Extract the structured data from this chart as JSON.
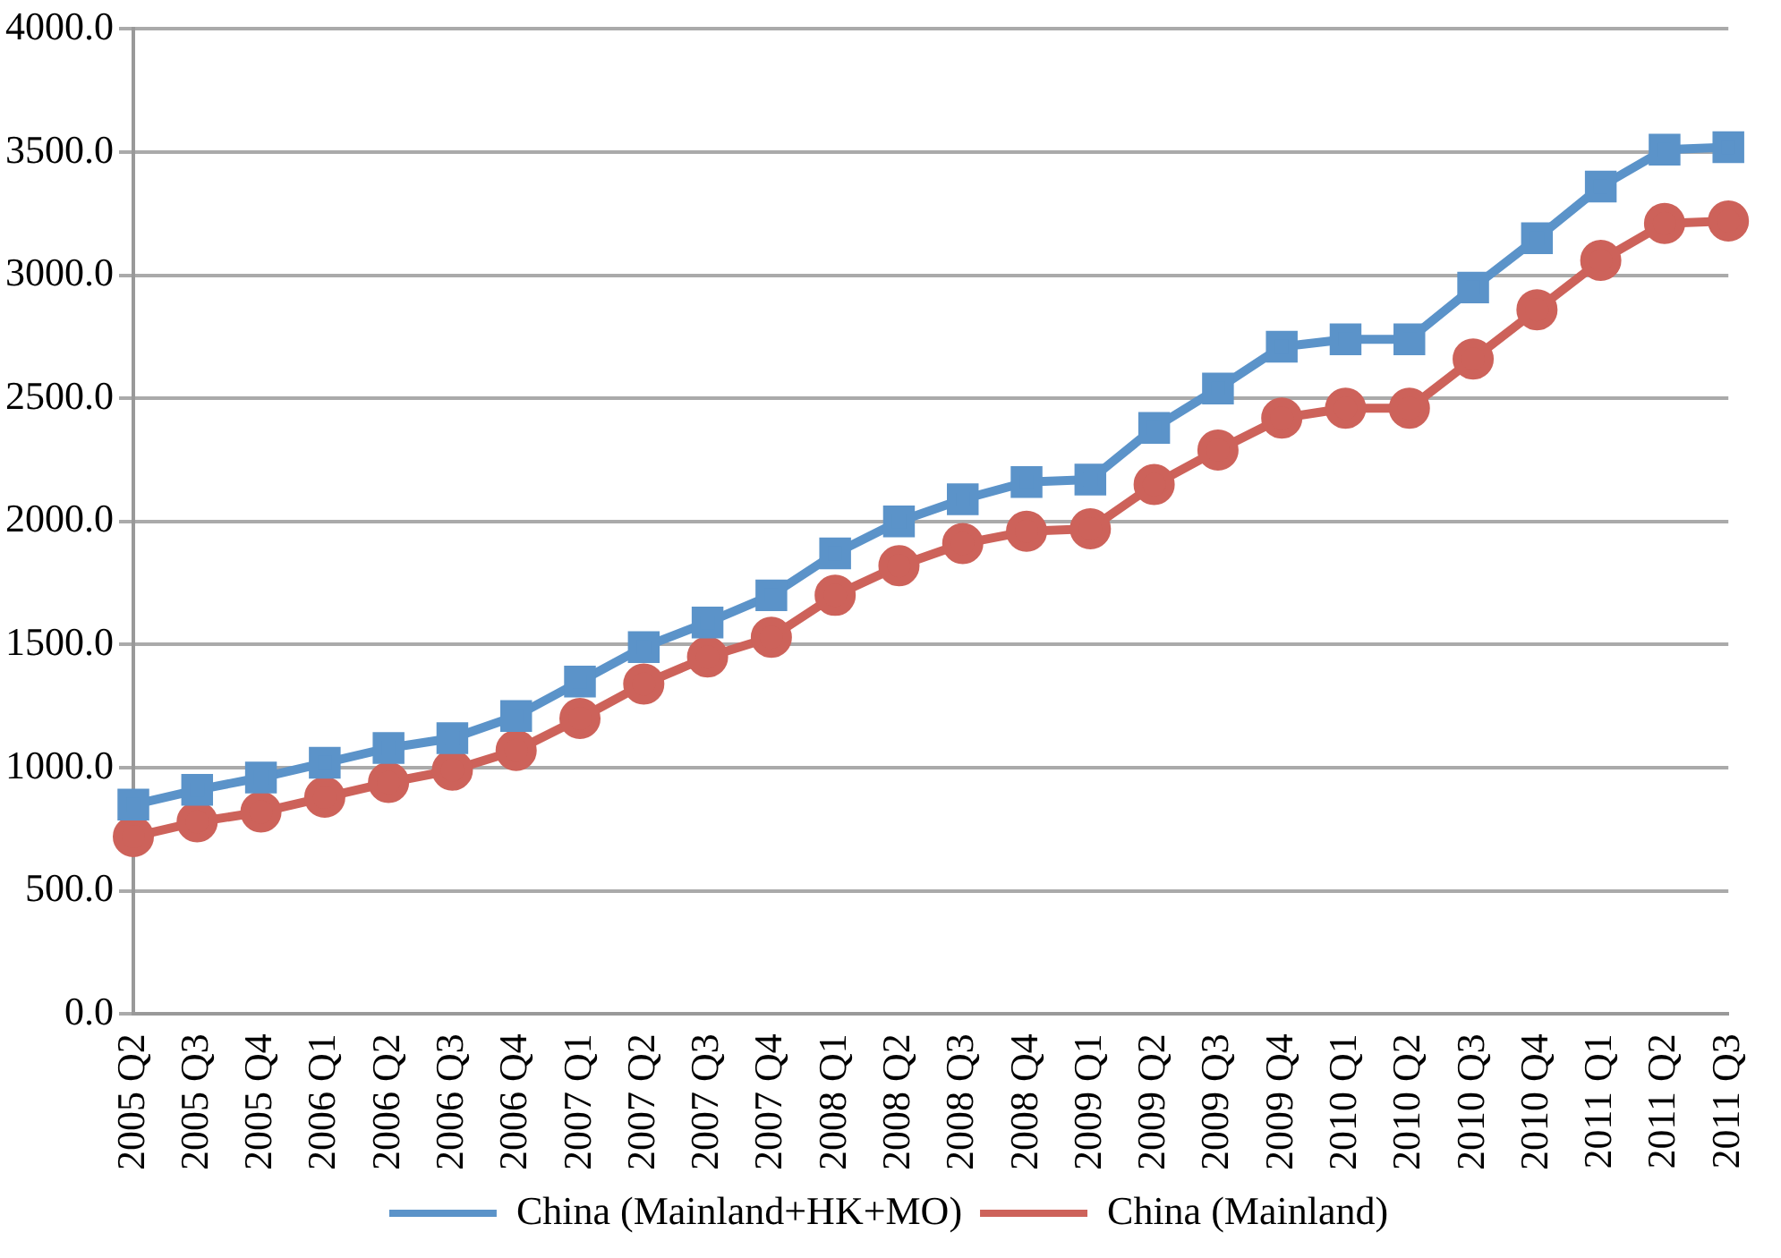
{
  "chart_data": {
    "type": "line",
    "categories": [
      "2005 Q2",
      "2005 Q3",
      "2005 Q4",
      "2006 Q1",
      "2006 Q2",
      "2006 Q3",
      "2006 Q4",
      "2007 Q1",
      "2007 Q2",
      "2007 Q3",
      "2007 Q4",
      "2008 Q1",
      "2008 Q2",
      "2008 Q3",
      "2008 Q4",
      "2009 Q1",
      "2009 Q2",
      "2009 Q3",
      "2009 Q4",
      "2010 Q1",
      "2010 Q2",
      "2010 Q3",
      "2010 Q4",
      "2011 Q1",
      "2011 Q2",
      "2011 Q3"
    ],
    "series": [
      {
        "name": "China (Mainland+HK+MO)",
        "color": "#5b93c9",
        "marker": "square",
        "values": [
          850,
          910,
          960,
          1020,
          1080,
          1120,
          1210,
          1350,
          1490,
          1590,
          1700,
          1870,
          2000,
          2090,
          2160,
          2170,
          2380,
          2540,
          2710,
          2740,
          2740,
          2950,
          3150,
          3360,
          3510,
          3520
        ]
      },
      {
        "name": "China (Mainland)",
        "color": "#cd625a",
        "marker": "circle",
        "values": [
          720,
          780,
          820,
          880,
          940,
          990,
          1070,
          1200,
          1340,
          1450,
          1530,
          1700,
          1820,
          1910,
          1960,
          1970,
          2150,
          2290,
          2420,
          2460,
          2460,
          2660,
          2860,
          3060,
          3210,
          3220
        ]
      }
    ],
    "ylim": [
      0,
      4000
    ],
    "yticks": [
      {
        "value": 0,
        "label": "0.0"
      },
      {
        "value": 500,
        "label": "500.0"
      },
      {
        "value": 1000,
        "label": "1000.0"
      },
      {
        "value": 1500,
        "label": "1500.0"
      },
      {
        "value": 2000,
        "label": "2000.0"
      },
      {
        "value": 2500,
        "label": "2500.0"
      },
      {
        "value": 3000,
        "label": "3000.0"
      },
      {
        "value": 3500,
        "label": "3500.0"
      },
      {
        "value": 4000,
        "label": "4000.0"
      }
    ],
    "grid": "y",
    "legend": "bottom"
  }
}
